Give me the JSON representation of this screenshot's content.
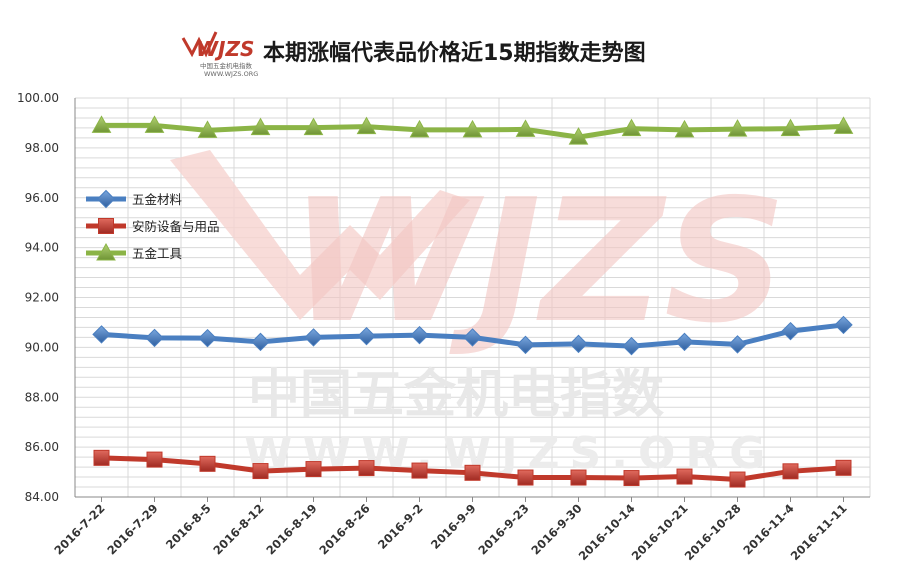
{
  "logo": {
    "text": "WJZS",
    "line1": "中国五金机电指数",
    "line2": "WWW.WJZS.ORG"
  },
  "watermark": {
    "big": "WJZS",
    "cn": "中国五金机电指数",
    "url": "WWW.WJZS.ORG"
  },
  "chart_data": {
    "type": "line",
    "title": "本期涨幅代表品价格近15期指数走势图",
    "xlabel": "",
    "ylabel": "",
    "categories": [
      "2016-7-22",
      "2016-7-29",
      "2016-8-5",
      "2016-8-12",
      "2016-8-19",
      "2016-8-26",
      "2016-9-2",
      "2016-9-9",
      "2016-9-23",
      "2016-9-30",
      "2016-10-14",
      "2016-10-21",
      "2016-10-28",
      "2016-11-4",
      "2016-11-11"
    ],
    "ylim": [
      84,
      100
    ],
    "yticks": [
      "84.00",
      "86.00",
      "88.00",
      "90.00",
      "92.00",
      "94.00",
      "96.00",
      "98.00",
      "100.00"
    ],
    "grid": true,
    "legend_position": "left",
    "series": [
      {
        "name": "五金材料",
        "color": "#4a7fc1",
        "marker": "diamond",
        "values": [
          90.52,
          90.38,
          90.37,
          90.22,
          90.4,
          90.45,
          90.49,
          90.4,
          90.1,
          90.14,
          90.05,
          90.22,
          90.12,
          90.65,
          90.9
        ]
      },
      {
        "name": "安防设备与用品",
        "color": "#c0392b",
        "marker": "square",
        "values": [
          85.57,
          85.5,
          85.33,
          85.04,
          85.12,
          85.16,
          85.06,
          84.97,
          84.78,
          84.78,
          84.76,
          84.82,
          84.7,
          85.03,
          85.17
        ]
      },
      {
        "name": "五金工具",
        "color": "#8bb446",
        "marker": "triangle",
        "values": [
          98.9,
          98.9,
          98.7,
          98.81,
          98.81,
          98.85,
          98.72,
          98.72,
          98.74,
          98.43,
          98.77,
          98.72,
          98.75,
          98.77,
          98.86
        ]
      }
    ]
  }
}
